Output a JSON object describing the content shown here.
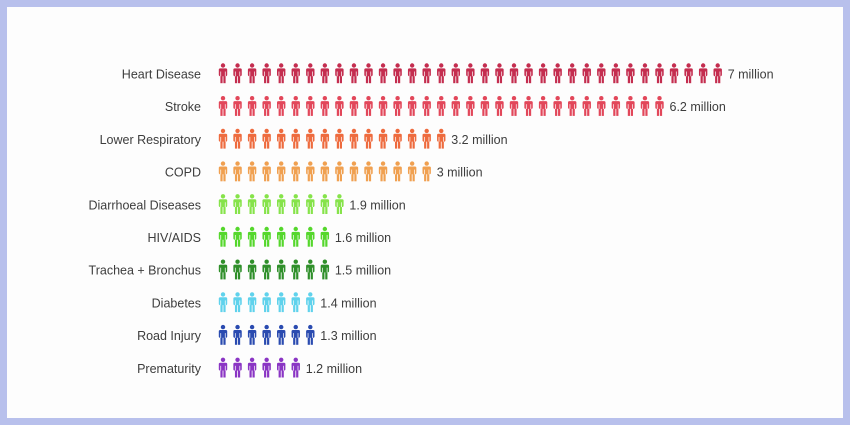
{
  "chart_data": {
    "type": "bar",
    "categories": [
      "Heart Disease",
      "Stroke",
      "Lower Respiratory",
      "COPD",
      "Diarrhoeal Diseases",
      "HIV/AIDS",
      "Trachea + Bronchus",
      "Diabetes",
      "Road Injury",
      "Prematurity"
    ],
    "values": [
      7,
      6.2,
      3.2,
      3,
      1.9,
      1.6,
      1.5,
      1.4,
      1.3,
      1.2
    ],
    "value_labels": [
      "7 million",
      "6.2 million",
      "3.2 million",
      "3 million",
      "1.9 million",
      "1.6 million",
      "1.5 million",
      "1.4 million",
      "1.3 million",
      "1.2 million"
    ],
    "colors": [
      "#c42d4f",
      "#e2475a",
      "#ee6b3e",
      "#f0a050",
      "#86e34a",
      "#55d72c",
      "#2f8f2a",
      "#5fd2ec",
      "#2a4bb0",
      "#8a35c4"
    ],
    "unit": "million",
    "title": "",
    "xlabel": "",
    "ylabel": ""
  }
}
